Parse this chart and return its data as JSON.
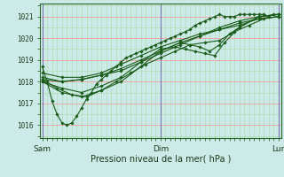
{
  "title": "Pression niveau de la mer( hPa )",
  "xlabel_ticks": [
    "Sam",
    "Dim",
    "Lun"
  ],
  "xlabel_tick_pos": [
    0,
    48,
    96
  ],
  "ylabel_ticks": [
    1016,
    1017,
    1018,
    1019,
    1020,
    1021
  ],
  "ylim": [
    1015.4,
    1021.6
  ],
  "xlim": [
    -1,
    97
  ],
  "bg_color": "#cceae8",
  "grid_color_major": "#f0a0a0",
  "grid_color_minor": "#aad8a8",
  "line_color": "#1a5c1a",
  "marker_color": "#1a5c1a",
  "vline_color": "#7878aa",
  "series": [
    {
      "x": [
        0,
        2,
        4,
        6,
        8,
        10,
        12,
        14,
        16,
        18,
        20,
        22,
        24,
        26,
        28,
        30,
        32,
        34,
        36,
        38,
        40,
        42,
        44,
        46,
        48,
        50,
        52,
        54,
        56,
        58,
        60,
        62,
        64,
        66,
        68,
        70,
        72,
        74,
        76,
        78,
        80,
        82,
        84,
        86,
        88,
        90,
        92,
        94,
        96
      ],
      "y": [
        1018.7,
        1018.0,
        1017.1,
        1016.5,
        1016.1,
        1016.0,
        1016.1,
        1016.4,
        1016.8,
        1017.2,
        1017.5,
        1017.9,
        1018.1,
        1018.3,
        1018.5,
        1018.7,
        1018.9,
        1019.1,
        1019.2,
        1019.3,
        1019.4,
        1019.5,
        1019.6,
        1019.7,
        1019.8,
        1019.9,
        1020.0,
        1020.1,
        1020.2,
        1020.3,
        1020.4,
        1020.6,
        1020.7,
        1020.8,
        1020.9,
        1021.0,
        1021.1,
        1021.0,
        1021.0,
        1021.0,
        1021.1,
        1021.1,
        1021.1,
        1021.1,
        1021.1,
        1021.1,
        1021.0,
        1021.1,
        1021.1
      ]
    },
    {
      "x": [
        0,
        6,
        12,
        18,
        24,
        30,
        36,
        42,
        48,
        54,
        60,
        66,
        72,
        78,
        84,
        90,
        96
      ],
      "y": [
        1018.1,
        1017.7,
        1017.4,
        1017.3,
        1017.6,
        1018.0,
        1018.4,
        1018.8,
        1019.1,
        1019.4,
        1019.7,
        1019.8,
        1019.9,
        1020.3,
        1020.6,
        1020.9,
        1021.0
      ]
    },
    {
      "x": [
        0,
        8,
        16,
        24,
        32,
        40,
        48,
        56,
        64,
        72,
        80,
        88,
        96
      ],
      "y": [
        1018.2,
        1018.0,
        1018.1,
        1018.3,
        1018.5,
        1018.9,
        1019.3,
        1019.7,
        1020.1,
        1020.5,
        1020.8,
        1021.0,
        1021.1
      ]
    },
    {
      "x": [
        0,
        8,
        16,
        24,
        32,
        40,
        48,
        56,
        64,
        72,
        80,
        88,
        96
      ],
      "y": [
        1018.1,
        1018.0,
        1018.1,
        1018.3,
        1018.6,
        1019.0,
        1019.4,
        1019.8,
        1020.1,
        1020.4,
        1020.7,
        1020.9,
        1021.0
      ]
    },
    {
      "x": [
        0,
        8,
        16,
        24,
        32,
        40,
        48,
        56,
        60,
        64,
        68,
        72,
        76,
        80,
        88,
        96
      ],
      "y": [
        1018.0,
        1017.5,
        1017.3,
        1017.6,
        1018.0,
        1018.7,
        1019.4,
        1019.8,
        1019.7,
        1019.6,
        1019.4,
        1019.7,
        1020.2,
        1020.5,
        1021.0,
        1021.1
      ]
    },
    {
      "x": [
        0,
        8,
        16,
        24,
        32,
        40,
        48,
        54,
        58,
        62,
        66,
        70,
        74,
        80,
        88,
        96
      ],
      "y": [
        1018.0,
        1017.7,
        1017.5,
        1017.8,
        1018.2,
        1018.9,
        1019.5,
        1019.6,
        1019.5,
        1019.4,
        1019.3,
        1019.2,
        1019.8,
        1020.5,
        1021.0,
        1021.1
      ]
    },
    {
      "x": [
        0,
        8,
        16,
        24,
        32,
        40,
        48,
        56,
        64,
        72,
        80,
        88,
        96
      ],
      "y": [
        1018.4,
        1018.2,
        1018.2,
        1018.4,
        1018.8,
        1019.2,
        1019.6,
        1019.9,
        1020.2,
        1020.4,
        1020.6,
        1020.9,
        1021.0
      ]
    }
  ]
}
